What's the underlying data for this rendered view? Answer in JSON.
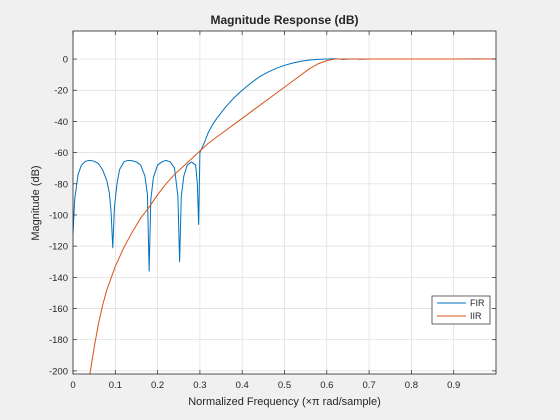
{
  "chart_data": {
    "type": "line",
    "title": "Magnitude Response (dB)",
    "xlabel": "Normalized Frequency (×π rad/sample)",
    "ylabel": "Magnitude (dB)",
    "xlim": [
      0,
      1
    ],
    "ylim": [
      -202,
      18
    ],
    "xticks": [
      0,
      0.1,
      0.2,
      0.3,
      0.4,
      0.5,
      0.6,
      0.7,
      0.8,
      0.9
    ],
    "xtick_labels": [
      "0",
      "0.1",
      "0.2",
      "0.3",
      "0.4",
      "0.5",
      "0.6",
      "0.7",
      "0.8",
      "0.9"
    ],
    "yticks": [
      0,
      -20,
      -40,
      -60,
      -80,
      -100,
      -120,
      -140,
      -160,
      -180,
      -200
    ],
    "ytick_labels": [
      "0",
      "-20",
      "-40",
      "-60",
      "-80",
      "-100",
      "-120",
      "-140",
      "-160",
      "-180",
      "-200"
    ],
    "grid": true,
    "legend_position": "lower-right",
    "series": [
      {
        "name": "FIR",
        "color": "#0072bd",
        "x": [
          0,
          0.004,
          0.012,
          0.02,
          0.03,
          0.04,
          0.05,
          0.06,
          0.07,
          0.08,
          0.086,
          0.09,
          0.094,
          0.098,
          0.104,
          0.11,
          0.12,
          0.13,
          0.14,
          0.15,
          0.16,
          0.17,
          0.176,
          0.18,
          0.184,
          0.19,
          0.2,
          0.21,
          0.22,
          0.23,
          0.24,
          0.248,
          0.252,
          0.256,
          0.262,
          0.27,
          0.28,
          0.29,
          0.294,
          0.297,
          0.3,
          0.31,
          0.32,
          0.33,
          0.34,
          0.36,
          0.38,
          0.4,
          0.42,
          0.44,
          0.46,
          0.48,
          0.5,
          0.52,
          0.54,
          0.56,
          0.58,
          0.6,
          0.62,
          0.64,
          0.66,
          0.68,
          0.7,
          0.75,
          0.8,
          0.85,
          0.9,
          0.95,
          1.0
        ],
        "y": [
          -112,
          -90,
          -74,
          -68,
          -65.5,
          -65,
          -65.5,
          -67,
          -71,
          -78,
          -86,
          -98,
          -121,
          -95,
          -80,
          -71,
          -66,
          -65,
          -65.2,
          -66,
          -68,
          -75,
          -87,
          -136,
          -90,
          -76,
          -68,
          -66,
          -65,
          -66,
          -70,
          -88,
          -130,
          -88,
          -75,
          -68,
          -66,
          -68,
          -80,
          -106,
          -60,
          -54,
          -47,
          -42,
          -38,
          -31,
          -25,
          -20,
          -15.5,
          -11.5,
          -8.5,
          -6,
          -4,
          -2.5,
          -1.3,
          -0.6,
          -0.2,
          0,
          0.2,
          -0.2,
          0.1,
          -0.1,
          0,
          0.05,
          0,
          0.05,
          0,
          0.1,
          0
        ]
      },
      {
        "name": "IIR",
        "color": "#d95319",
        "x": [
          0.04,
          0.05,
          0.06,
          0.07,
          0.08,
          0.1,
          0.12,
          0.14,
          0.16,
          0.18,
          0.2,
          0.22,
          0.24,
          0.26,
          0.28,
          0.3,
          0.32,
          0.35,
          0.38,
          0.41,
          0.44,
          0.47,
          0.5,
          0.53,
          0.56,
          0.58,
          0.6,
          0.62,
          0.65,
          0.7,
          0.8,
          0.9,
          1.0
        ],
        "y": [
          -202,
          -185,
          -170,
          -158,
          -148,
          -133,
          -121,
          -111,
          -102,
          -95,
          -87,
          -80,
          -74,
          -69,
          -64,
          -59,
          -54,
          -48,
          -42,
          -36,
          -30,
          -24,
          -18,
          -12,
          -6,
          -3,
          -1,
          0,
          0,
          0,
          0,
          0,
          0
        ]
      }
    ]
  }
}
